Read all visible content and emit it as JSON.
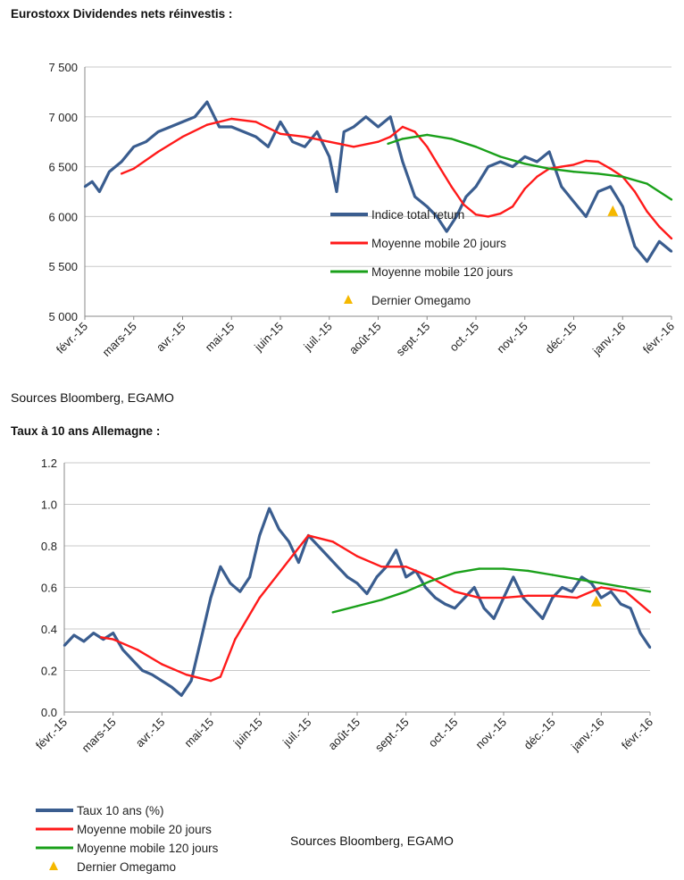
{
  "chart1_title": "Eurostoxx Dividendes nets réinvestis :",
  "chart1_source": "Sources Bloomberg, EGAMO",
  "chart2_title": "Taux à 10 ans Allemagne :",
  "chart2_source": "Sources Bloomberg, EGAMO",
  "colors": {
    "blue": "#3a5d8f",
    "red": "#ff1a1a",
    "green": "#1aa01a",
    "marker": "#f5b800"
  },
  "chart_data": [
    {
      "type": "line",
      "title": "Eurostoxx Dividendes nets réinvestis :",
      "categories": [
        "févr.-15",
        "mars-15",
        "avr.-15",
        "mai-15",
        "juin-15",
        "juil.-15",
        "août-15",
        "sept.-15",
        "oct.-15",
        "nov.-15",
        "déc.-15",
        "janv.-16",
        "févr.-16"
      ],
      "ylim": [
        5000,
        7500
      ],
      "yticks": [
        5000,
        5500,
        6000,
        6500,
        7000,
        7500
      ],
      "ytick_labels": [
        "5 000",
        "5 500",
        "6 000",
        "6 500",
        "7 000",
        "7 500"
      ],
      "grid": true,
      "legend": "inside-bottom-right",
      "series": [
        {
          "name": "Indice total return",
          "color": "#3a5d8f",
          "x": [
            0,
            0.15,
            0.3,
            0.5,
            0.75,
            1,
            1.25,
            1.5,
            1.75,
            2,
            2.25,
            2.5,
            2.75,
            3,
            3.25,
            3.5,
            3.75,
            4,
            4.25,
            4.5,
            4.75,
            5,
            5.15,
            5.3,
            5.5,
            5.75,
            6,
            6.25,
            6.5,
            6.75,
            7,
            7.2,
            7.4,
            7.6,
            7.8,
            8,
            8.25,
            8.5,
            8.75,
            9,
            9.25,
            9.5,
            9.75,
            10,
            10.25,
            10.5,
            10.75,
            11,
            11.25,
            11.5,
            11.75,
            12
          ],
          "values": [
            6300,
            6350,
            6250,
            6450,
            6550,
            6700,
            6750,
            6850,
            6900,
            6950,
            7000,
            7150,
            6900,
            6900,
            6850,
            6800,
            6700,
            6950,
            6750,
            6700,
            6850,
            6600,
            6250,
            6850,
            6900,
            7000,
            6900,
            7000,
            6550,
            6200,
            6100,
            6000,
            5850,
            6000,
            6200,
            6300,
            6500,
            6550,
            6500,
            6600,
            6550,
            6650,
            6300,
            6150,
            6000,
            6250,
            6300,
            6100,
            5700,
            5550,
            5750,
            5650
          ]
        },
        {
          "name": "Moyenne mobile 20 jours",
          "color": "#ff1a1a",
          "x": [
            0.75,
            1,
            1.5,
            2,
            2.5,
            3,
            3.5,
            4,
            4.5,
            5,
            5.5,
            6,
            6.25,
            6.5,
            6.75,
            7,
            7.25,
            7.5,
            7.75,
            8,
            8.25,
            8.5,
            8.75,
            9,
            9.25,
            9.5,
            9.75,
            10,
            10.25,
            10.5,
            10.75,
            11,
            11.25,
            11.5,
            11.75,
            12
          ],
          "values": [
            6430,
            6480,
            6650,
            6800,
            6920,
            6980,
            6950,
            6830,
            6800,
            6750,
            6700,
            6750,
            6800,
            6900,
            6850,
            6700,
            6500,
            6300,
            6120,
            6020,
            6000,
            6030,
            6100,
            6280,
            6400,
            6480,
            6500,
            6520,
            6560,
            6550,
            6480,
            6400,
            6250,
            6050,
            5900,
            5780
          ]
        },
        {
          "name": "Moyenne mobile 120 jours",
          "color": "#1aa01a",
          "x": [
            6.2,
            6.5,
            7,
            7.5,
            8,
            8.5,
            9,
            9.5,
            10,
            10.5,
            11,
            11.5,
            12
          ],
          "values": [
            6730,
            6780,
            6820,
            6780,
            6700,
            6600,
            6530,
            6480,
            6450,
            6430,
            6400,
            6330,
            6170
          ]
        },
        {
          "name": "Dernier Omegamo",
          "color": "#f5b800",
          "marker": "triangle",
          "x": [
            10.8
          ],
          "values": [
            6050
          ]
        }
      ]
    },
    {
      "type": "line",
      "title": "Taux à 10 ans Allemagne :",
      "categories": [
        "févr.-15",
        "mars-15",
        "avr.-15",
        "mai-15",
        "juin-15",
        "juil.-15",
        "août-15",
        "sept.-15",
        "oct.-15",
        "nov.-15",
        "déc.-15",
        "janv.-16",
        "févr.-16"
      ],
      "ylim": [
        0.0,
        1.2
      ],
      "yticks": [
        0.0,
        0.2,
        0.4,
        0.6,
        0.8,
        1.0,
        1.2
      ],
      "ytick_labels": [
        "0.0",
        "0.2",
        "0.4",
        "0.6",
        "0.8",
        "1.0",
        "1.2"
      ],
      "grid": true,
      "legend": "bottom-left",
      "series": [
        {
          "name": "Taux 10 ans (%)",
          "color": "#3a5d8f",
          "x": [
            0,
            0.2,
            0.4,
            0.6,
            0.8,
            1,
            1.2,
            1.4,
            1.6,
            1.8,
            2,
            2.2,
            2.4,
            2.6,
            2.8,
            3,
            3.2,
            3.4,
            3.6,
            3.8,
            4,
            4.2,
            4.4,
            4.6,
            4.8,
            5,
            5.2,
            5.4,
            5.6,
            5.8,
            6,
            6.2,
            6.4,
            6.6,
            6.8,
            7,
            7.2,
            7.4,
            7.6,
            7.8,
            8,
            8.2,
            8.4,
            8.6,
            8.8,
            9,
            9.2,
            9.4,
            9.6,
            9.8,
            10,
            10.2,
            10.4,
            10.6,
            10.8,
            11,
            11.2,
            11.4,
            11.6,
            11.8,
            12
          ],
          "values": [
            0.32,
            0.37,
            0.34,
            0.38,
            0.35,
            0.38,
            0.3,
            0.25,
            0.2,
            0.18,
            0.15,
            0.12,
            0.08,
            0.15,
            0.35,
            0.55,
            0.7,
            0.62,
            0.58,
            0.65,
            0.85,
            0.98,
            0.88,
            0.82,
            0.72,
            0.85,
            0.8,
            0.75,
            0.7,
            0.65,
            0.62,
            0.57,
            0.65,
            0.7,
            0.78,
            0.65,
            0.68,
            0.6,
            0.55,
            0.52,
            0.5,
            0.55,
            0.6,
            0.5,
            0.45,
            0.55,
            0.65,
            0.55,
            0.5,
            0.45,
            0.55,
            0.6,
            0.58,
            0.65,
            0.62,
            0.55,
            0.58,
            0.52,
            0.5,
            0.38,
            0.31
          ]
        },
        {
          "name": "Moyenne mobile 20 jours",
          "color": "#ff1a1a",
          "x": [
            0.75,
            1,
            1.5,
            2,
            2.5,
            3,
            3.2,
            3.5,
            4,
            4.5,
            5,
            5.5,
            6,
            6.5,
            7,
            7.5,
            8,
            8.5,
            9,
            9.5,
            10,
            10.5,
            11,
            11.5,
            12
          ],
          "values": [
            0.36,
            0.35,
            0.3,
            0.23,
            0.18,
            0.15,
            0.17,
            0.35,
            0.55,
            0.7,
            0.85,
            0.82,
            0.75,
            0.7,
            0.7,
            0.65,
            0.58,
            0.55,
            0.55,
            0.56,
            0.56,
            0.55,
            0.6,
            0.58,
            0.48
          ]
        },
        {
          "name": "Moyenne mobile 120 jours",
          "color": "#1aa01a",
          "x": [
            5.5,
            6,
            6.5,
            7,
            7.5,
            8,
            8.5,
            9,
            9.5,
            10,
            10.5,
            11,
            11.5,
            12
          ],
          "values": [
            0.48,
            0.51,
            0.54,
            0.58,
            0.63,
            0.67,
            0.69,
            0.69,
            0.68,
            0.66,
            0.64,
            0.62,
            0.6,
            0.58
          ]
        },
        {
          "name": "Dernier Omegamo",
          "color": "#f5b800",
          "marker": "triangle",
          "x": [
            10.9
          ],
          "values": [
            0.53
          ]
        }
      ]
    }
  ]
}
